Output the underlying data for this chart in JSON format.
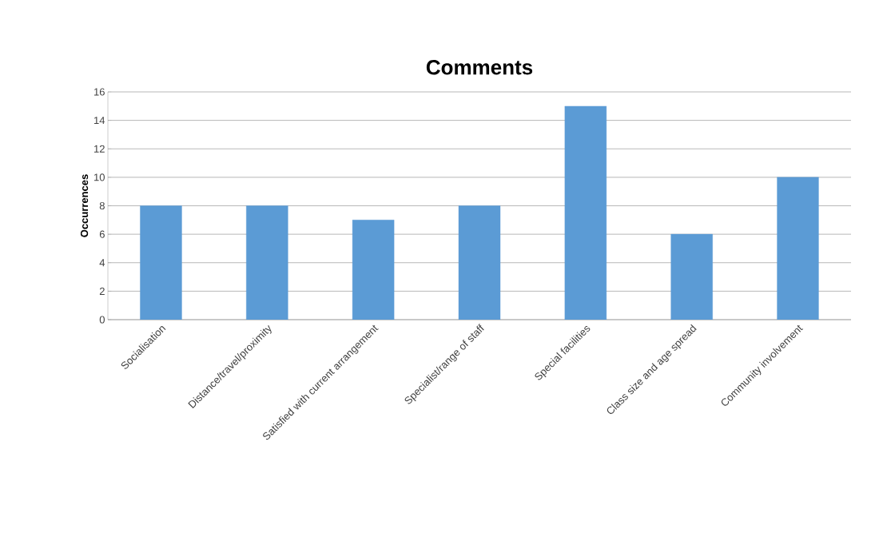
{
  "chart_data": {
    "type": "bar",
    "title": "Comments",
    "ylabel": "Occurrences",
    "categories": [
      "Socialisation",
      "Distance/travel/proximity",
      "Satisfied with current arrangement",
      "Specialist/range of staff",
      "Special facilities",
      "Class size and age spread",
      "Community involvement"
    ],
    "values": [
      8,
      8,
      7,
      8,
      15,
      6,
      10
    ],
    "color": "#5b9bd5",
    "ylim": [
      0,
      16
    ],
    "yticks": [
      0,
      2,
      4,
      6,
      8,
      10,
      12,
      14,
      16
    ],
    "grid": "y"
  }
}
